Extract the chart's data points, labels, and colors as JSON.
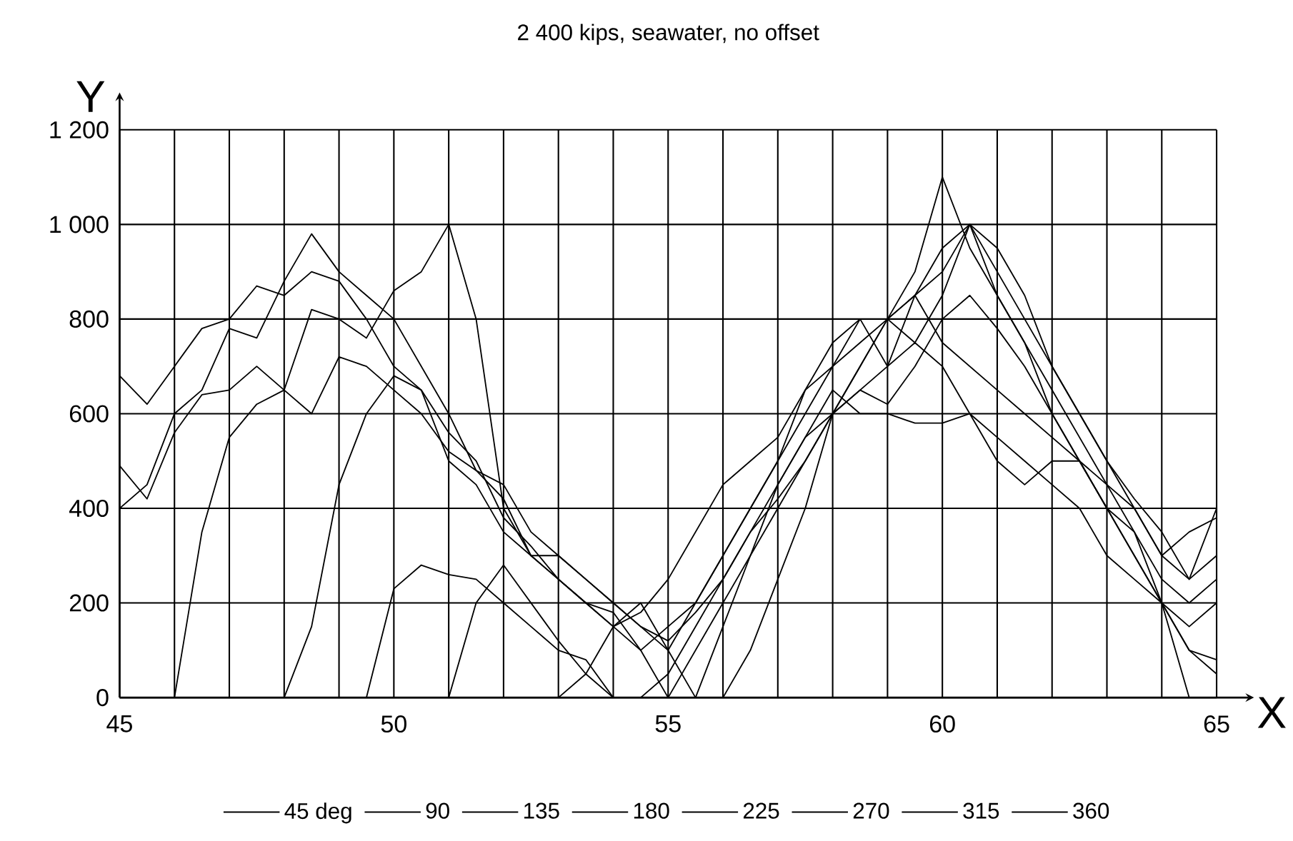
{
  "chart_data": {
    "type": "line",
    "title": "2 400 kips, seawater, no offset",
    "xlabel": "X",
    "ylabel": "Y",
    "x": [
      45,
      45.5,
      46,
      46.5,
      47,
      47.5,
      48,
      48.5,
      49,
      49.5,
      50,
      50.5,
      51,
      51.5,
      52,
      52.5,
      53,
      53.5,
      54,
      54.5,
      55,
      55.5,
      56,
      56.5,
      57,
      57.5,
      58,
      58.5,
      59,
      59.5,
      60,
      60.5,
      61,
      61.5,
      62,
      62.5,
      63,
      63.5,
      64,
      64.5,
      65
    ],
    "series": [
      {
        "name": "45 deg",
        "color": "#000000",
        "values": [
          680,
          620,
          700,
          780,
          800,
          870,
          850,
          900,
          880,
          800,
          700,
          650,
          500,
          450,
          350,
          300,
          250,
          200,
          150,
          180,
          250,
          350,
          450,
          500,
          550,
          650,
          700,
          750,
          800,
          900,
          1100,
          950,
          850,
          750,
          650,
          550,
          450,
          400,
          300,
          350,
          380
        ]
      },
      {
        "name": "90",
        "color": "#000000",
        "values": [
          490,
          420,
          560,
          640,
          650,
          700,
          650,
          820,
          800,
          760,
          860,
          900,
          1000,
          800,
          400,
          300,
          250,
          200,
          180,
          100,
          0,
          0,
          150,
          300,
          450,
          550,
          600,
          700,
          800,
          850,
          950,
          1000,
          900,
          800,
          700,
          600,
          500,
          420,
          350,
          250,
          300
        ]
      },
      {
        "name": "135",
        "color": "#000000",
        "values": [
          400,
          450,
          600,
          650,
          780,
          760,
          880,
          980,
          900,
          850,
          800,
          700,
          600,
          480,
          420,
          300,
          300,
          250,
          200,
          150,
          100,
          200,
          300,
          400,
          500,
          600,
          700,
          800,
          800,
          850,
          750,
          700,
          650,
          600,
          550,
          500,
          400,
          300,
          200,
          150,
          200
        ]
      },
      {
        "name": "180",
        "color": "#000000",
        "values": [
          0,
          0,
          0,
          350,
          550,
          620,
          650,
          600,
          720,
          700,
          650,
          600,
          520,
          480,
          450,
          350,
          300,
          250,
          200,
          150,
          120,
          180,
          250,
          350,
          420,
          500,
          600,
          650,
          620,
          700,
          800,
          850,
          780,
          700,
          600,
          500,
          400,
          300,
          200,
          100,
          80
        ]
      },
      {
        "name": "225",
        "color": "#000000",
        "values": [
          0,
          0,
          0,
          0,
          0,
          0,
          0,
          150,
          450,
          600,
          680,
          650,
          560,
          500,
          380,
          320,
          250,
          200,
          150,
          100,
          150,
          200,
          300,
          400,
          500,
          650,
          750,
          800,
          700,
          750,
          700,
          600,
          500,
          450,
          500,
          500,
          450,
          350,
          250,
          200,
          250
        ]
      },
      {
        "name": "270",
        "color": "#000000",
        "values": [
          0,
          0,
          0,
          0,
          0,
          0,
          0,
          0,
          0,
          0,
          230,
          280,
          260,
          250,
          200,
          150,
          100,
          80,
          0,
          0,
          50,
          150,
          250,
          350,
          450,
          550,
          650,
          600,
          600,
          580,
          580,
          600,
          550,
          500,
          450,
          400,
          300,
          250,
          200,
          100,
          50
        ]
      },
      {
        "name": "315",
        "color": "#000000",
        "values": [
          0,
          0,
          0,
          0,
          0,
          0,
          0,
          0,
          0,
          0,
          0,
          0,
          0,
          200,
          280,
          200,
          120,
          50,
          0,
          0,
          0,
          100,
          200,
          300,
          400,
          500,
          600,
          700,
          800,
          750,
          850,
          1000,
          850,
          750,
          600,
          500,
          400,
          350,
          200,
          0,
          0
        ]
      },
      {
        "name": "360",
        "color": "#000000",
        "values": [
          0,
          0,
          0,
          0,
          0,
          0,
          0,
          0,
          0,
          0,
          0,
          0,
          0,
          0,
          0,
          0,
          0,
          50,
          150,
          200,
          100,
          0,
          0,
          100,
          250,
          400,
          600,
          650,
          700,
          850,
          900,
          1000,
          950,
          850,
          700,
          600,
          500,
          400,
          300,
          250,
          400
        ]
      }
    ],
    "xlim": [
      45,
      65
    ],
    "xticks": [
      45,
      {
        "value": 46,
        "label": null
      },
      {
        "value": 47,
        "label": null
      },
      {
        "value": 48,
        "label": null
      },
      {
        "value": 49,
        "label": null
      },
      50,
      {
        "value": 51,
        "label": null
      },
      {
        "value": 52,
        "label": null
      },
      {
        "value": 53,
        "label": null
      },
      {
        "value": 54,
        "label": null
      },
      55,
      {
        "value": 56,
        "label": null
      },
      {
        "value": 57,
        "label": null
      },
      {
        "value": 58,
        "label": null
      },
      {
        "value": 59,
        "label": null
      },
      60,
      {
        "value": 61,
        "label": null
      },
      {
        "value": 62,
        "label": null
      },
      {
        "value": 63,
        "label": null
      },
      {
        "value": 64,
        "label": null
      },
      65
    ],
    "ylim": [
      0,
      1200
    ],
    "yticks": [
      0,
      200,
      400,
      600,
      800,
      {
        "value": 1000,
        "label": "1 000"
      },
      {
        "value": 1200,
        "label": "1 200"
      }
    ],
    "grid": true,
    "legend": "bottom",
    "marker": "none",
    "line_style": "solid"
  }
}
